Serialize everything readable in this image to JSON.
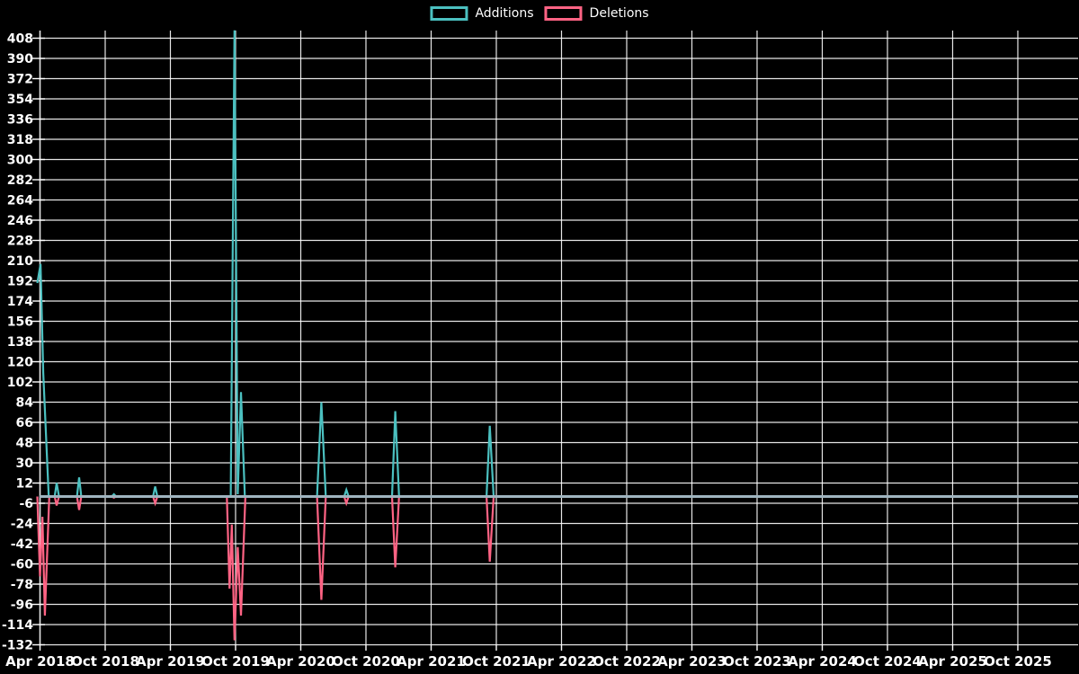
{
  "chart_data": {
    "type": "line",
    "title": "",
    "legend_position": "top",
    "background_color": "#000000",
    "grid": true,
    "grid_color": "#ffffff",
    "text_color": "#ffffff",
    "zero_line_color": "#9fb4bf",
    "x_unit": "months since Apr 2018 (6-month labelled ticks)",
    "x_tick_step_months": 6,
    "x_tick_labels": [
      "Apr 2018",
      "Oct 2018",
      "Apr 2019",
      "Oct 2019",
      "Apr 2020",
      "Oct 2020",
      "Apr 2021",
      "Oct 2021",
      "Apr 2022",
      "Oct 2022",
      "Apr 2023",
      "Oct 2023",
      "Apr 2024",
      "Oct 2024",
      "Apr 2025",
      "Oct 2025"
    ],
    "y_tick_labels": [
      408,
      390,
      372,
      354,
      336,
      318,
      300,
      282,
      264,
      246,
      228,
      210,
      192,
      174,
      156,
      138,
      120,
      102,
      84,
      66,
      48,
      30,
      12,
      -6,
      -24,
      -42,
      -60,
      -78,
      -96,
      -114,
      -132
    ],
    "ylim": [
      -136,
      416
    ],
    "series": [
      {
        "name": "Additions",
        "color": "#4bc0c0",
        "points": [
          [
            -0.25,
            190
          ],
          [
            0.05,
            207
          ],
          [
            0.3,
            110
          ],
          [
            0.8,
            0
          ],
          [
            1.35,
            0
          ],
          [
            1.53,
            12
          ],
          [
            1.75,
            0
          ],
          [
            3.4,
            0
          ],
          [
            3.6,
            17
          ],
          [
            3.8,
            0
          ],
          [
            6.6,
            0
          ],
          [
            6.8,
            2
          ],
          [
            7.0,
            0
          ],
          [
            10.4,
            0
          ],
          [
            10.6,
            9
          ],
          [
            10.8,
            0
          ],
          [
            17.55,
            0
          ],
          [
            17.9,
            415
          ],
          [
            18.2,
            2
          ],
          [
            18.5,
            93
          ],
          [
            18.85,
            0
          ],
          [
            25.5,
            0
          ],
          [
            25.9,
            84
          ],
          [
            26.3,
            0
          ],
          [
            28.0,
            0
          ],
          [
            28.2,
            6
          ],
          [
            28.4,
            0
          ],
          [
            32.4,
            0
          ],
          [
            32.7,
            76
          ],
          [
            33.05,
            0
          ],
          [
            41.1,
            0
          ],
          [
            41.4,
            63
          ],
          [
            41.75,
            0
          ],
          [
            95.5,
            0
          ]
        ]
      },
      {
        "name": "Deletions",
        "color": "#ff6384",
        "points": [
          [
            -0.25,
            0
          ],
          [
            0.0,
            -71
          ],
          [
            0.22,
            -18
          ],
          [
            0.45,
            -106
          ],
          [
            0.85,
            0
          ],
          [
            1.35,
            0
          ],
          [
            1.53,
            -8
          ],
          [
            1.75,
            0
          ],
          [
            3.4,
            0
          ],
          [
            3.6,
            -12
          ],
          [
            3.8,
            0
          ],
          [
            6.6,
            0
          ],
          [
            6.8,
            -1
          ],
          [
            7.0,
            0
          ],
          [
            10.4,
            0
          ],
          [
            10.6,
            -6
          ],
          [
            10.8,
            0
          ],
          [
            17.2,
            0
          ],
          [
            17.45,
            -82
          ],
          [
            17.65,
            -25
          ],
          [
            17.9,
            -128
          ],
          [
            18.2,
            -45
          ],
          [
            18.5,
            -106
          ],
          [
            18.9,
            0
          ],
          [
            25.5,
            0
          ],
          [
            25.9,
            -92
          ],
          [
            26.3,
            0
          ],
          [
            28.0,
            0
          ],
          [
            28.2,
            -6
          ],
          [
            28.4,
            0
          ],
          [
            32.4,
            0
          ],
          [
            32.7,
            -63
          ],
          [
            33.05,
            0
          ],
          [
            41.1,
            0
          ],
          [
            41.4,
            -58
          ],
          [
            41.75,
            0
          ],
          [
            95.5,
            0
          ]
        ]
      }
    ]
  }
}
